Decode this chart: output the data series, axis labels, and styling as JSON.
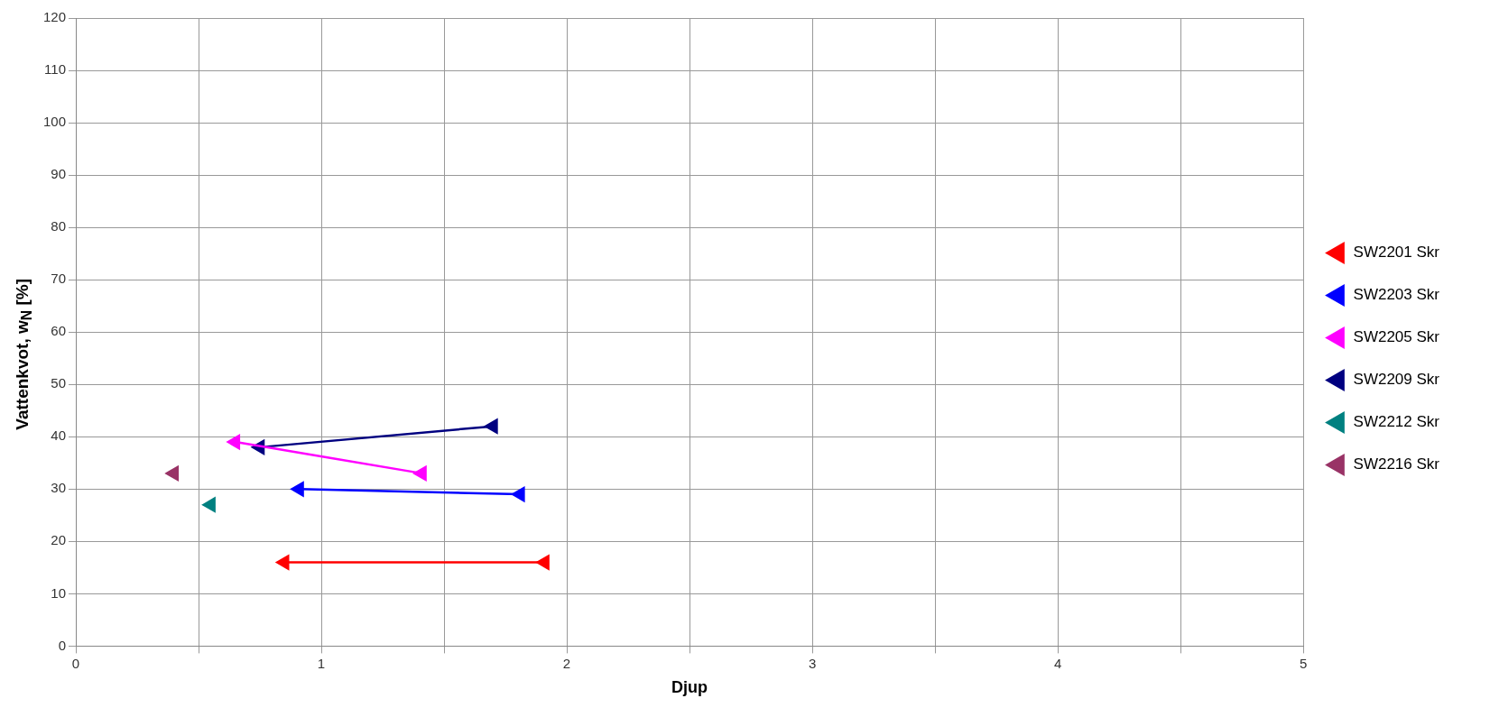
{
  "chart_data": {
    "type": "line",
    "xlabel": "Djup",
    "ylabel": "Vattenkvot, w$_{N}$ [%]",
    "xlim": [
      0,
      5
    ],
    "xticks": [
      0,
      {
        "value": 0.5,
        "label": null
      },
      1,
      {
        "value": 1.5,
        "label": null
      },
      2,
      {
        "value": 2.5,
        "label": null
      },
      3,
      {
        "value": 3.5,
        "label": null
      },
      4,
      {
        "value": 4.5,
        "label": null
      },
      5
    ],
    "ylim": [
      0,
      120
    ],
    "yticks": [
      0,
      10,
      20,
      30,
      40,
      50,
      60,
      70,
      80,
      90,
      100,
      110,
      120
    ],
    "grid": true,
    "legend": "right",
    "marker": "triangle",
    "line_style": "solid",
    "series": [
      {
        "name": "SW2201 Skr",
        "color": "#ff0000",
        "x": [
          0.85,
          1.91
        ],
        "values": [
          16,
          16
        ]
      },
      {
        "name": "SW2203 Skr",
        "color": "#0000ff",
        "x": [
          0.91,
          1.81
        ],
        "values": [
          30,
          29
        ]
      },
      {
        "name": "SW2205 Skr",
        "color": "#ff00ff",
        "x": [
          0.65,
          1.41
        ],
        "values": [
          39,
          33
        ]
      },
      {
        "name": "SW2209 Skr",
        "color": "#000080",
        "x": [
          0.75,
          1.7
        ],
        "values": [
          38,
          42
        ]
      },
      {
        "name": "SW2212 Skr",
        "color": "#008080",
        "x": [
          0.55
        ],
        "values": [
          27
        ]
      },
      {
        "name": "SW2216 Skr",
        "color": "#993366",
        "x": [
          0.4
        ],
        "values": [
          33
        ]
      }
    ]
  }
}
